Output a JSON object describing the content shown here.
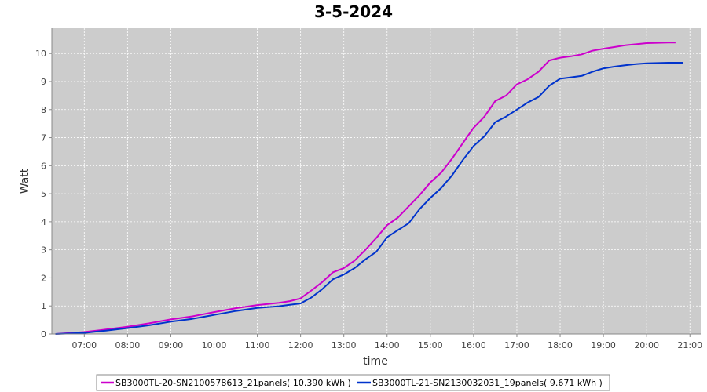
{
  "chart_data": {
    "type": "line",
    "title": "3-5-2024",
    "xlabel": "time",
    "ylabel": "Watt",
    "xlim": [
      "06:15",
      "21:15"
    ],
    "ylim": [
      0,
      10.9
    ],
    "x_ticks": [
      "07:00",
      "08:00",
      "09:00",
      "10:00",
      "11:00",
      "12:00",
      "13:00",
      "14:00",
      "15:00",
      "16:00",
      "17:00",
      "18:00",
      "19:00",
      "20:00",
      "21:00"
    ],
    "y_ticks": [
      "0",
      "1",
      "2",
      "3",
      "4",
      "5",
      "6",
      "7",
      "8",
      "9",
      "10"
    ],
    "grid": true,
    "legend_position": "bottom",
    "series": [
      {
        "name": "SB3000TL-20-SN2100578613_21panels( 10.390 kWh )",
        "color": "#cc00cc",
        "x": [
          "06:20",
          "07:00",
          "07:30",
          "08:00",
          "08:30",
          "09:00",
          "09:30",
          "10:00",
          "10:30",
          "11:00",
          "11:30",
          "11:45",
          "12:00",
          "12:15",
          "12:30",
          "12:45",
          "13:00",
          "13:15",
          "13:30",
          "13:45",
          "14:00",
          "14:15",
          "14:30",
          "14:45",
          "15:00",
          "15:15",
          "15:30",
          "15:45",
          "16:00",
          "16:15",
          "16:30",
          "16:45",
          "17:00",
          "17:15",
          "17:30",
          "17:45",
          "18:00",
          "18:15",
          "18:30",
          "18:45",
          "19:00",
          "19:15",
          "19:30",
          "19:45",
          "20:00",
          "20:15",
          "20:30",
          "20:40"
        ],
        "y": [
          0.0,
          0.07,
          0.16,
          0.26,
          0.38,
          0.52,
          0.63,
          0.78,
          0.92,
          1.03,
          1.11,
          1.17,
          1.27,
          1.55,
          1.85,
          2.2,
          2.35,
          2.62,
          3.0,
          3.42,
          3.88,
          4.15,
          4.55,
          4.95,
          5.4,
          5.75,
          6.25,
          6.8,
          7.35,
          7.75,
          8.3,
          8.5,
          8.9,
          9.08,
          9.35,
          9.75,
          9.85,
          9.9,
          9.97,
          10.1,
          10.17,
          10.23,
          10.29,
          10.33,
          10.37,
          10.38,
          10.39,
          10.39
        ]
      },
      {
        "name": "SB3000TL-21-SN2130032031_19panels( 9.671 kWh )",
        "color": "#0033cc",
        "x": [
          "06:20",
          "07:00",
          "07:30",
          "08:00",
          "08:30",
          "09:00",
          "09:30",
          "10:00",
          "10:30",
          "11:00",
          "11:30",
          "11:45",
          "12:00",
          "12:15",
          "12:30",
          "12:45",
          "13:00",
          "13:15",
          "13:30",
          "13:45",
          "14:00",
          "14:15",
          "14:30",
          "14:45",
          "15:00",
          "15:15",
          "15:30",
          "15:45",
          "16:00",
          "16:15",
          "16:30",
          "16:45",
          "17:00",
          "17:15",
          "17:30",
          "17:45",
          "18:00",
          "18:15",
          "18:30",
          "18:45",
          "19:00",
          "19:15",
          "19:30",
          "19:45",
          "20:00",
          "20:15",
          "20:30",
          "20:50"
        ],
        "y": [
          0.0,
          0.04,
          0.12,
          0.21,
          0.31,
          0.44,
          0.54,
          0.68,
          0.82,
          0.93,
          0.99,
          1.04,
          1.09,
          1.3,
          1.6,
          1.95,
          2.12,
          2.35,
          2.66,
          2.93,
          3.45,
          3.7,
          3.95,
          4.45,
          4.85,
          5.2,
          5.65,
          6.2,
          6.7,
          7.05,
          7.55,
          7.75,
          8.0,
          8.25,
          8.45,
          8.85,
          9.1,
          9.15,
          9.2,
          9.35,
          9.47,
          9.53,
          9.58,
          9.62,
          9.65,
          9.66,
          9.67,
          9.67
        ]
      }
    ]
  }
}
